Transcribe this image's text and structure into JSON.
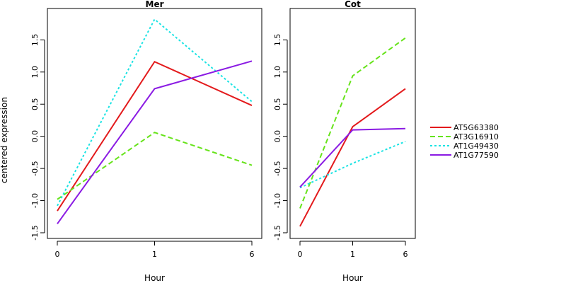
{
  "chart_data": {
    "type": "line",
    "ylabel": "centered expression",
    "xlabel": "Hour",
    "x_categories": [
      "0",
      "1",
      "6"
    ],
    "y_ticks": [
      "-1.5",
      "-1.0",
      "-0.5",
      "0.0",
      "0.5",
      "1.0",
      "1.5"
    ],
    "ylim": [
      -1.5,
      1.9
    ],
    "legend_position": "right",
    "series_styles": [
      {
        "name": "AT5G63380",
        "color": "#e31a1c",
        "dash": "solid"
      },
      {
        "name": "AT3G16910",
        "color": "#66e31a",
        "dash": "dashed"
      },
      {
        "name": "AT1G49430",
        "color": "#1ae3e3",
        "dash": "dotted"
      },
      {
        "name": "AT1G77590",
        "color": "#8a1ae3",
        "dash": "solid"
      }
    ],
    "panels": [
      {
        "title": "Mer",
        "series": [
          {
            "name": "AT5G63380",
            "values": [
              -1.16,
              1.16,
              0.48
            ]
          },
          {
            "name": "AT3G16910",
            "values": [
              -0.98,
              0.06,
              -0.45
            ]
          },
          {
            "name": "AT1G49430",
            "values": [
              -1.08,
              1.82,
              0.54
            ]
          },
          {
            "name": "AT1G77590",
            "values": [
              -1.36,
              0.74,
              1.17
            ]
          }
        ]
      },
      {
        "title": "Cot",
        "series": [
          {
            "name": "AT5G63380",
            "values": [
              -1.4,
              0.15,
              0.74
            ]
          },
          {
            "name": "AT3G16910",
            "values": [
              -1.12,
              0.94,
              1.53
            ]
          },
          {
            "name": "AT1G49430",
            "values": [
              -0.8,
              -0.42,
              -0.08
            ]
          },
          {
            "name": "AT1G77590",
            "values": [
              -0.79,
              0.1,
              0.12
            ]
          }
        ]
      }
    ]
  }
}
